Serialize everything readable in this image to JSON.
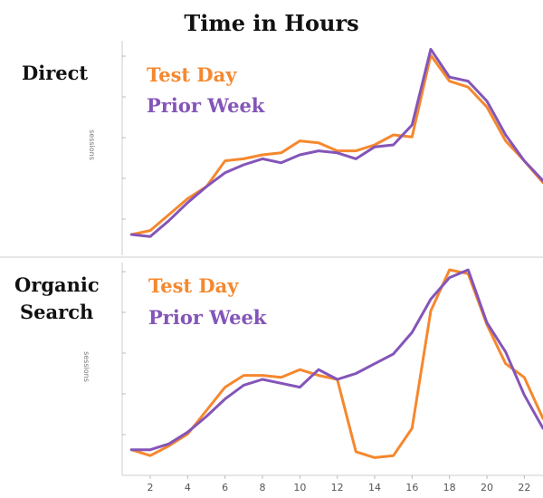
{
  "title": "Time in Hours",
  "colors": {
    "test_day": "#f5882e",
    "prior_week": "#8455b8"
  },
  "x_tick_labels": [
    "2",
    "4",
    "6",
    "8",
    "10",
    "12",
    "14",
    "16",
    "18",
    "20",
    "22"
  ],
  "chart_data": [
    {
      "type": "line",
      "panel_label": "Direct",
      "ylabel": "sessions",
      "x": [
        1,
        2,
        3,
        4,
        5,
        6,
        7,
        8,
        9,
        10,
        11,
        12,
        13,
        14,
        15,
        16,
        17,
        18,
        19,
        20,
        21,
        22,
        23
      ],
      "xlim": [
        0.5,
        23
      ],
      "ylim": [
        0,
        100
      ],
      "series": [
        {
          "name": "Test Day",
          "color": "#f5882e",
          "values": [
            5,
            7,
            15,
            23,
            29,
            42,
            43,
            45,
            46,
            52,
            51,
            47,
            47,
            50,
            55,
            54,
            95,
            82,
            79,
            69,
            52,
            42,
            31
          ]
        },
        {
          "name": "Prior Week",
          "color": "#8455b8",
          "values": [
            5,
            4,
            12,
            21,
            29,
            36,
            40,
            43,
            41,
            45,
            47,
            46,
            43,
            49,
            50,
            60,
            98,
            84,
            82,
            72,
            55,
            42,
            32
          ]
        }
      ]
    },
    {
      "type": "line",
      "panel_label": "Organic Search",
      "ylabel": "sessions",
      "x": [
        1,
        2,
        3,
        4,
        5,
        6,
        7,
        8,
        9,
        10,
        11,
        12,
        13,
        14,
        15,
        16,
        17,
        18,
        19,
        20,
        21,
        22,
        23
      ],
      "xlim": [
        0.5,
        23
      ],
      "ylim": [
        0,
        100
      ],
      "series": [
        {
          "name": "Test Day",
          "color": "#f5882e",
          "values": [
            8,
            5,
            10,
            16,
            28,
            40,
            46,
            46,
            45,
            49,
            46,
            44,
            7,
            4,
            5,
            19,
            79,
            100,
            98,
            72,
            52,
            45,
            24
          ]
        },
        {
          "name": "Prior Week",
          "color": "#8455b8",
          "values": [
            8,
            8,
            11,
            17,
            25,
            34,
            41,
            44,
            42,
            40,
            49,
            44,
            47,
            52,
            57,
            68,
            85,
            96,
            100,
            73,
            58,
            36,
            19
          ]
        }
      ]
    }
  ]
}
